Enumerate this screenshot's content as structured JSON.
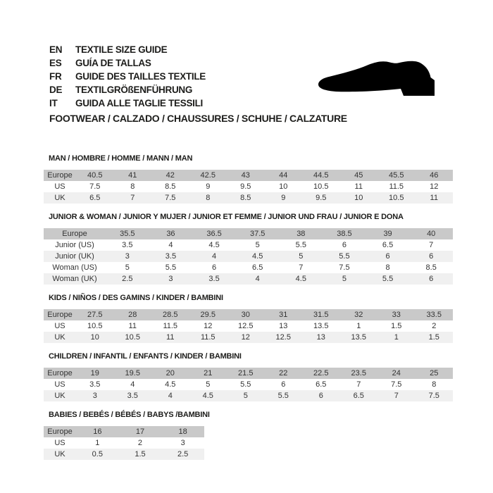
{
  "header": {
    "languages": [
      {
        "code": "EN",
        "label": "TEXTILE SIZE GUIDE"
      },
      {
        "code": "ES",
        "label": "GUÍA DE TALLAS"
      },
      {
        "code": "FR",
        "label": "GUIDE DES TAILLES TEXTILE"
      },
      {
        "code": "DE",
        "label": "TEXTILGRÖßENFÜHRUNG"
      },
      {
        "code": "IT",
        "label": "GUIDA ALLE TAGLIE TESSILI"
      }
    ],
    "category_line": "FOOTWEAR / CALZADO / CHAUSSURES / SCHUHE / CALZATURE",
    "shoe_icon": "dress-shoe-silhouette"
  },
  "colors": {
    "header_row": "#c9c9c9",
    "stripe_row": "#f0f0f0",
    "text": "#1d1d1b",
    "shoe": "#000000",
    "background": "#ffffff"
  },
  "tables": [
    {
      "title": "MAN / HOMBRE / HOMME / MANN / MAN",
      "rows": [
        {
          "label": "Europe",
          "values": [
            "40.5",
            "41",
            "42",
            "42.5",
            "43",
            "44",
            "44.5",
            "45",
            "45.5",
            "46"
          ]
        },
        {
          "label": "US",
          "values": [
            "7.5",
            "8",
            "8.5",
            "9",
            "9.5",
            "10",
            "10.5",
            "11",
            "11.5",
            "12"
          ]
        },
        {
          "label": "UK",
          "values": [
            "6.5",
            "7",
            "7.5",
            "8",
            "8.5",
            "9",
            "9.5",
            "10",
            "10.5",
            "11"
          ]
        }
      ]
    },
    {
      "title": "JUNIOR & WOMAN / JUNIOR Y MUJER / JUNIOR ET FEMME / JUNIOR UND FRAU / JUNIOR E DONA",
      "rows": [
        {
          "label": "Europe",
          "values": [
            "35.5",
            "36",
            "36.5",
            "37.5",
            "38",
            "38.5",
            "39",
            "40"
          ]
        },
        {
          "label": "Junior (US)",
          "values": [
            "3.5",
            "4",
            "4.5",
            "5",
            "5.5",
            "6",
            "6.5",
            "7"
          ]
        },
        {
          "label": "Junior (UK)",
          "values": [
            "3",
            "3.5",
            "4",
            "4.5",
            "5",
            "5.5",
            "6",
            "6"
          ]
        },
        {
          "label": "Woman (US)",
          "values": [
            "5",
            "5.5",
            "6",
            "6.5",
            "7",
            "7.5",
            "8",
            "8.5"
          ]
        },
        {
          "label": "Woman (UK)",
          "values": [
            "2.5",
            "3",
            "3.5",
            "4",
            "4.5",
            "5",
            "5.5",
            "6"
          ]
        }
      ]
    },
    {
      "title": "KIDS / NIÑOS / DES GAMINS / KINDER / BAMBINI",
      "rows": [
        {
          "label": "Europe",
          "values": [
            "27.5",
            "28",
            "28.5",
            "29.5",
            "30",
            "31",
            "31.5",
            "32",
            "33",
            "33.5"
          ]
        },
        {
          "label": "US",
          "values": [
            "10.5",
            "11",
            "11.5",
            "12",
            "12.5",
            "13",
            "13.5",
            "1",
            "1.5",
            "2"
          ]
        },
        {
          "label": "UK",
          "values": [
            "10",
            "10.5",
            "11",
            "11.5",
            "12",
            "12.5",
            "13",
            "13.5",
            "1",
            "1.5"
          ]
        }
      ]
    },
    {
      "title": "CHILDREN / INFANTIL / ENFANTS / KINDER / BAMBINI",
      "rows": [
        {
          "label": "Europe",
          "values": [
            "19",
            "19.5",
            "20",
            "21",
            "21.5",
            "22",
            "22.5",
            "23.5",
            "24",
            "25"
          ]
        },
        {
          "label": "US",
          "values": [
            "3.5",
            "4",
            "4.5",
            "5",
            "5.5",
            "6",
            "6.5",
            "7",
            "7.5",
            "8"
          ]
        },
        {
          "label": "UK",
          "values": [
            "3",
            "3.5",
            "4",
            "4.5",
            "5",
            "5.5",
            "6",
            "6.5",
            "7",
            "7.5"
          ]
        }
      ]
    },
    {
      "title": "BABIES / BEBÉS / BÉBÉS / BABYS /BAMBINI",
      "rows": [
        {
          "label": "Europe",
          "values": [
            "16",
            "17",
            "18"
          ]
        },
        {
          "label": "US",
          "values": [
            "1",
            "2",
            "3"
          ]
        },
        {
          "label": "UK",
          "values": [
            "0.5",
            "1.5",
            "2.5"
          ]
        }
      ]
    }
  ]
}
